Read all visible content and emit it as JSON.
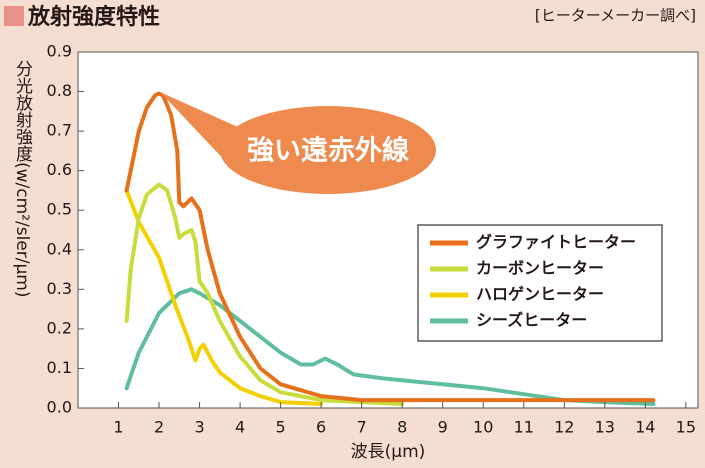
{
  "chart_data": {
    "type": "line",
    "title": "放射強度特性",
    "source": "[ヒーターメーカー調べ]",
    "x_label": "波長(μm)",
    "y_label": "分光放射強度(w/cm²/sler/μm)",
    "annotation": "強い遠赤外線",
    "xlim": [
      0,
      15.3
    ],
    "ylim": [
      0,
      0.9
    ],
    "xticks": [
      1,
      2,
      3,
      4,
      5,
      6,
      7,
      8,
      9,
      10,
      11,
      12,
      13,
      14,
      15
    ],
    "yticks": [
      {
        "value": 0,
        "label": "0.0"
      },
      0.1,
      0.2,
      0.3,
      0.4,
      0.5,
      0.6,
      0.7,
      0.8,
      0.9
    ],
    "grid": false,
    "legend": "right",
    "series": [
      {
        "name": "グラファイトヒーター",
        "color": "#e8701a",
        "x": [
          1.2,
          1.3,
          1.5,
          1.7,
          1.9,
          2.0,
          2.1,
          2.3,
          2.45,
          2.5,
          2.6,
          2.8,
          3.0,
          3.2,
          3.5,
          4,
          4.5,
          5,
          6,
          7,
          8,
          10,
          14.2
        ],
        "values": [
          0.55,
          0.6,
          0.7,
          0.76,
          0.79,
          0.795,
          0.79,
          0.74,
          0.65,
          0.52,
          0.51,
          0.53,
          0.5,
          0.4,
          0.29,
          0.18,
          0.1,
          0.06,
          0.03,
          0.02,
          0.02,
          0.02,
          0.02
        ]
      },
      {
        "name": "カーボンヒーター",
        "color": "#c8dc3c",
        "x": [
          1.2,
          1.3,
          1.5,
          1.7,
          2.0,
          2.2,
          2.4,
          2.5,
          2.6,
          2.8,
          2.9,
          3.0,
          3.2,
          3.5,
          4,
          4.5,
          5,
          6,
          7,
          8
        ],
        "values": [
          0.22,
          0.35,
          0.48,
          0.54,
          0.565,
          0.55,
          0.48,
          0.43,
          0.44,
          0.45,
          0.42,
          0.32,
          0.29,
          0.22,
          0.13,
          0.07,
          0.04,
          0.02,
          0.015,
          0.01
        ]
      },
      {
        "name": "ハロゲンヒーター",
        "color": "#f5d000",
        "x": [
          1.2,
          1.5,
          2.0,
          2.4,
          2.7,
          2.9,
          3.0,
          3.1,
          3.3,
          3.5,
          4,
          4.5,
          5,
          6
        ],
        "values": [
          0.55,
          0.47,
          0.38,
          0.26,
          0.18,
          0.12,
          0.15,
          0.16,
          0.12,
          0.09,
          0.05,
          0.03,
          0.015,
          0.01
        ]
      },
      {
        "name": "シーズヒーター",
        "color": "#5fbf9a",
        "x": [
          1.2,
          1.5,
          2.0,
          2.5,
          2.8,
          3.0,
          3.5,
          4,
          4.5,
          5,
          5.5,
          5.8,
          6.1,
          6.4,
          6.8,
          7.5,
          9,
          10,
          11,
          12,
          13,
          14.2
        ],
        "values": [
          0.05,
          0.14,
          0.24,
          0.29,
          0.3,
          0.29,
          0.26,
          0.22,
          0.18,
          0.14,
          0.11,
          0.11,
          0.125,
          0.11,
          0.085,
          0.075,
          0.06,
          0.05,
          0.035,
          0.02,
          0.015,
          0.01
        ]
      }
    ]
  }
}
